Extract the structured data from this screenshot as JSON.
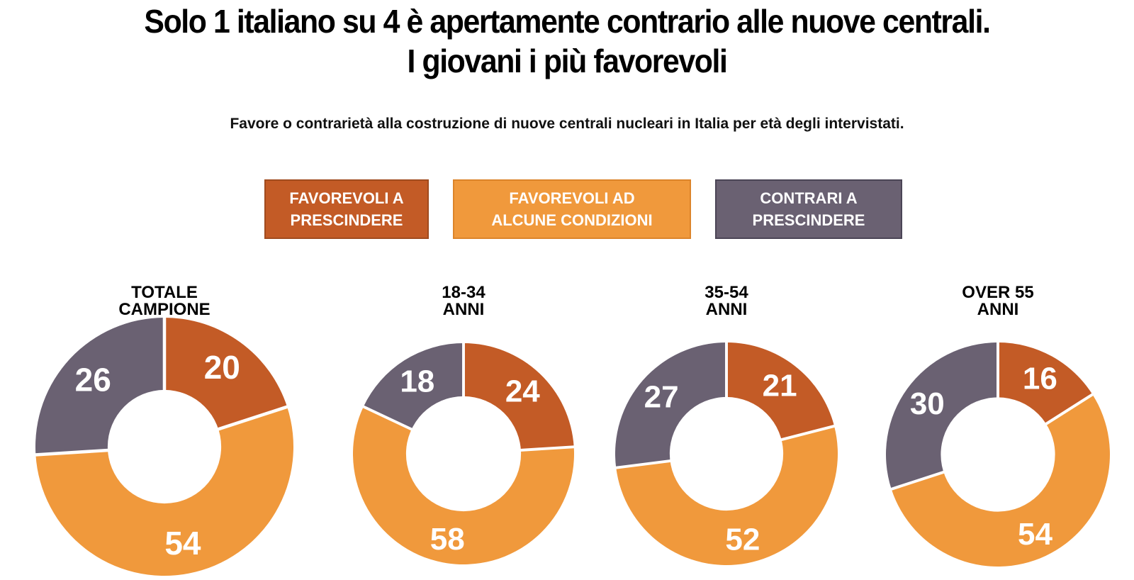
{
  "title": {
    "line1": "Solo 1 italiano su 4 è apertamente contrario alle nuove centrali.",
    "line2": "I giovani i più favorevoli"
  },
  "subtitle": "Favore o contrarietà alla costruzione di nuove centrali nucleari in Italia per età degli intervistati.",
  "legend": [
    {
      "line1": "FAVOREVOLI A",
      "line2": "PRESCINDERE",
      "color": "#C35B26",
      "border_color": "#A04B1E"
    },
    {
      "line1": "FAVOREVOLI AD",
      "line2": "ALCUNE CONDIZIONI",
      "color": "#F0993C",
      "border_color": "#DC842A"
    },
    {
      "line1": "CONTRARI A",
      "line2": "PRESCINDERE",
      "color": "#6A6172",
      "border_color": "#4B4556"
    }
  ],
  "chart_data": {
    "type": "pie",
    "subtype": "donut-multiple",
    "series_labels": [
      "FAVOREVOLI A PRESCINDERE",
      "FAVOREVOLI AD ALCUNE CONDIZIONI",
      "CONTRARI A PRESCINDERE"
    ],
    "colors": [
      "#C35B26",
      "#F0993C",
      "#6A6172"
    ],
    "value_label_color": "#ffffff",
    "start_angle_deg": 0,
    "direction": "clockwise",
    "charts": [
      {
        "label_line1": "TOTALE",
        "label_line2": "CAMPIONE",
        "values": [
          20,
          54,
          26
        ]
      },
      {
        "label_line1": "18-34",
        "label_line2": "ANNI",
        "values": [
          24,
          58,
          18
        ]
      },
      {
        "label_line1": "35-54",
        "label_line2": "ANNI",
        "values": [
          21,
          52,
          27
        ]
      },
      {
        "label_line1": "OVER 55",
        "label_line2": "ANNI",
        "values": [
          16,
          54,
          30
        ]
      }
    ]
  }
}
